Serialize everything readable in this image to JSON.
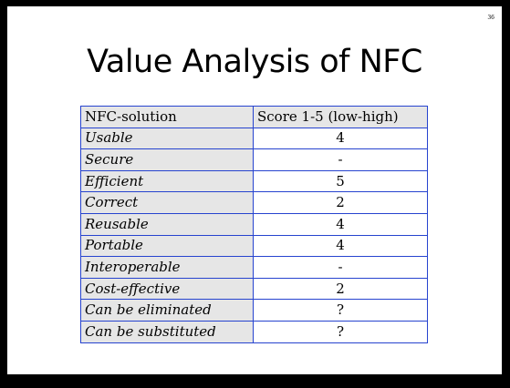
{
  "page_number": "36",
  "title": "Value Analysis of NFC",
  "table": {
    "headers": [
      "NFC-solution",
      "Score 1-5 (low-high)"
    ],
    "rows": [
      {
        "criterion": "Usable",
        "score": "4"
      },
      {
        "criterion": "Secure",
        "score": "-"
      },
      {
        "criterion": "Efficient",
        "score": "5"
      },
      {
        "criterion": "Correct",
        "score": "2"
      },
      {
        "criterion": "Reusable",
        "score": "4"
      },
      {
        "criterion": "Portable",
        "score": "4"
      },
      {
        "criterion": "Interoperable",
        "score": "-"
      },
      {
        "criterion": "Cost-effective",
        "score": "2"
      },
      {
        "criterion": "Can be eliminated",
        "score": "?"
      },
      {
        "criterion": "Can be substituted",
        "score": "?"
      }
    ]
  },
  "colors": {
    "frame": "#000000",
    "slide_background": "#ffffff",
    "table_border": "#2643cf",
    "label_cell_background": "#e6e6e6"
  }
}
